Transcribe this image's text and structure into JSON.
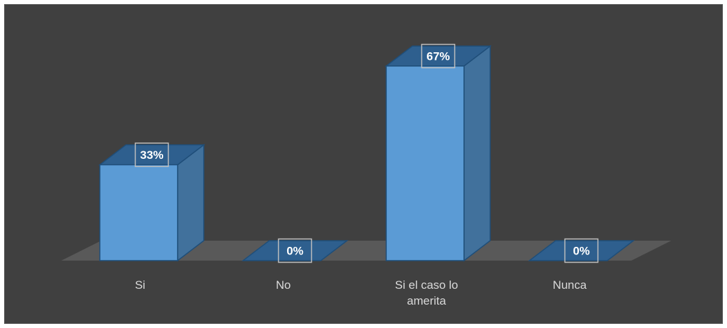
{
  "chart_data": {
    "type": "bar",
    "categories": [
      "Si",
      "No",
      "Si el caso lo amerita",
      "Nunca"
    ],
    "category_lines": [
      [
        "Si"
      ],
      [
        "No"
      ],
      [
        "Si el caso lo",
        "amerita"
      ],
      [
        "Nunca"
      ]
    ],
    "values": [
      33,
      0,
      67,
      0
    ],
    "data_labels": [
      "33%",
      "0%",
      "67%",
      "0%"
    ],
    "ylim": [
      0,
      67
    ],
    "grid": false,
    "legend": "none",
    "style": "3d-column"
  },
  "colors": {
    "background": "#404040",
    "frame_border": "#595959",
    "floor": "#595959",
    "bar_front": "#5b9bd5",
    "bar_side": "#41719c",
    "bar_top": "#2e5f8e",
    "bar_edge": "#1f4e79",
    "label_text": "#d9d9d9",
    "data_label_text": "#ffffff",
    "data_label_border": "#bfbfbf"
  }
}
